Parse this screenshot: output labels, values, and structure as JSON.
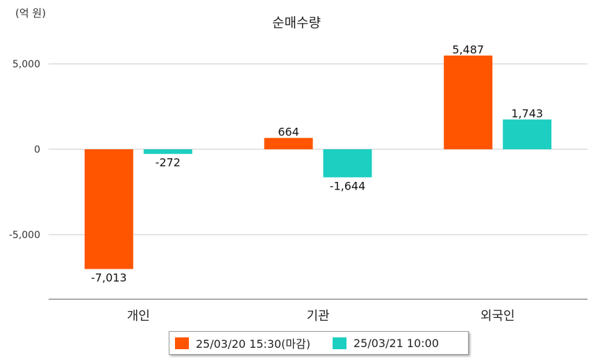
{
  "chart_data": {
    "type": "bar",
    "title": "순매수량",
    "unit_label": "(억 원)",
    "categories": [
      "개인",
      "기관",
      "외국인"
    ],
    "series": [
      {
        "name": "25/03/20 15:30(마감)",
        "color": "#ff5500",
        "values": [
          -7013,
          664,
          5487
        ]
      },
      {
        "name": "25/03/21 10:00",
        "color": "#1ccfc0",
        "values": [
          -272,
          -1644,
          1743
        ]
      }
    ],
    "data_labels": [
      [
        "-7,013",
        "664",
        "5,487"
      ],
      [
        "-272",
        "-1,644",
        "1,743"
      ]
    ],
    "yticks": [
      5000,
      0,
      -5000
    ],
    "ytick_labels": [
      "5,000",
      "0",
      "-5,000"
    ],
    "ylim": [
      -8800,
      6900
    ],
    "grid": true,
    "legend_position": "bottom"
  }
}
